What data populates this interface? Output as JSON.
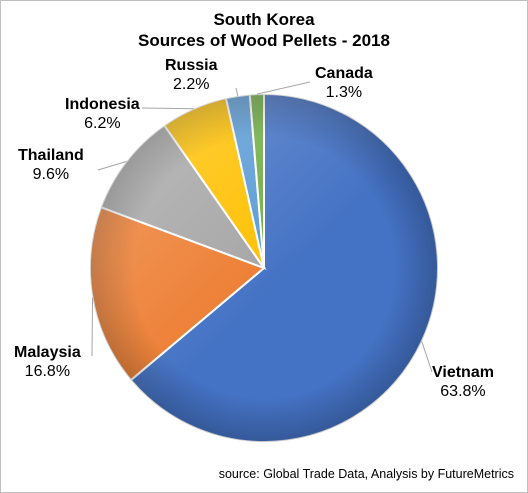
{
  "chart_data": {
    "type": "pie",
    "title_line1": "South Korea",
    "title_line2": "Sources of Wood Pellets - 2018",
    "slices": [
      {
        "name": "Vietnam",
        "value": 63.8,
        "label": "63.8%",
        "color": "#4472C4"
      },
      {
        "name": "Malaysia",
        "value": 16.8,
        "label": "16.8%",
        "color": "#ED7D31"
      },
      {
        "name": "Thailand",
        "value": 9.6,
        "label": "9.6%",
        "color": "#A5A5A5"
      },
      {
        "name": "Indonesia",
        "value": 6.2,
        "label": "6.2%",
        "color": "#FFC000"
      },
      {
        "name": "Russia",
        "value": 2.2,
        "label": "2.2%",
        "color": "#5B9BD5"
      },
      {
        "name": "Canada",
        "value": 1.3,
        "label": "1.3%",
        "color": "#70AD47"
      }
    ],
    "source": "source: Global Trade Data, Analysis by FutureMetrics"
  }
}
